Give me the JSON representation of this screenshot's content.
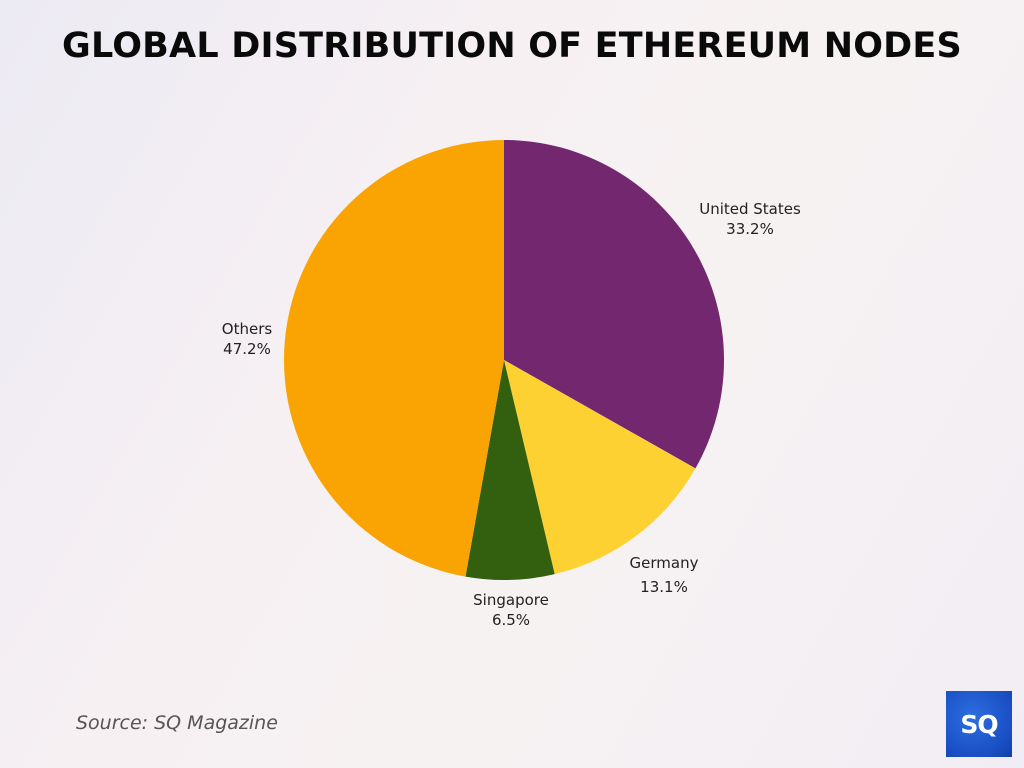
{
  "header": {
    "title": "GLOBAL DISTRIBUTION OF ETHEREUM NODES"
  },
  "footer": {
    "source": "Source: SQ Magazine",
    "logo_text": "SQ"
  },
  "labels": [
    {
      "name": "United States",
      "value": "33.2%"
    },
    {
      "name": "Germany",
      "value": "13.1%"
    },
    {
      "name": "Singapore",
      "value": "6.5%"
    },
    {
      "name": "Others",
      "value": "47.2%"
    }
  ],
  "chart_data": {
    "type": "pie",
    "title": "GLOBAL DISTRIBUTION OF ETHEREUM NODES",
    "categories": [
      "United States",
      "Germany",
      "Singapore",
      "Others"
    ],
    "values": [
      33.2,
      13.1,
      6.5,
      47.2
    ],
    "unit": "%",
    "colors": [
      "#72276f",
      "#fdd132",
      "#32600f",
      "#f9a402"
    ],
    "start_angle": "12 o'clock",
    "direction": "clockwise",
    "legend": "none (direct labels outside slices)",
    "source": "Source: SQ Magazine"
  }
}
